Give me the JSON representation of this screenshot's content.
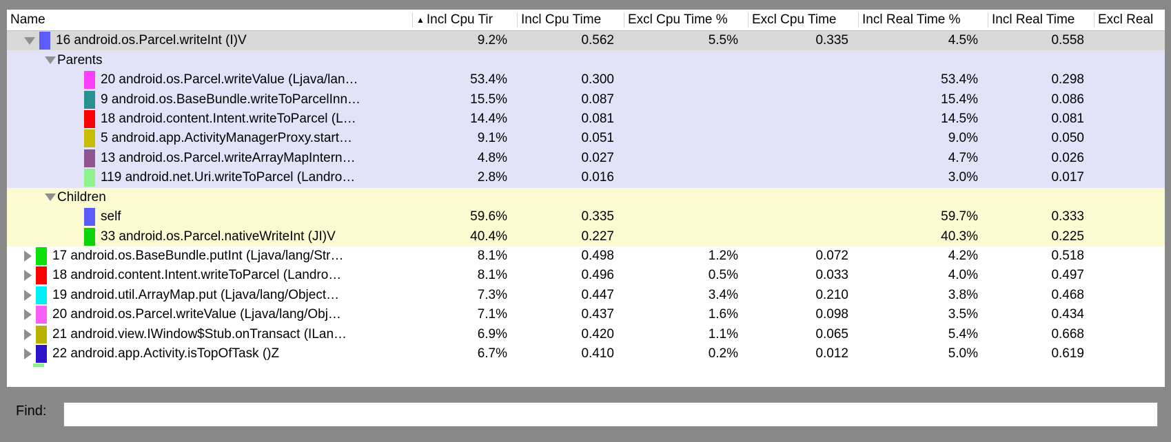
{
  "icons": {
    "sort_ascending": "▲"
  },
  "colors": {
    "window_background": "#898989",
    "selected_row": "#d8d8d8",
    "parents_section": "#e2e2f8",
    "children_section": "#fbfad1"
  },
  "table": {
    "columns": [
      {
        "key": "name",
        "label": "Name",
        "sorted": false
      },
      {
        "key": "incl_cpu_pct",
        "label": "Incl Cpu Tir",
        "sorted": true
      },
      {
        "key": "incl_cpu_time",
        "label": "Incl Cpu Time",
        "sorted": false
      },
      {
        "key": "excl_cpu_pct",
        "label": "Excl Cpu Time %",
        "sorted": false
      },
      {
        "key": "excl_cpu_time",
        "label": "Excl Cpu Time",
        "sorted": false
      },
      {
        "key": "incl_real_pct",
        "label": "Incl Real Time %",
        "sorted": false
      },
      {
        "key": "incl_real_time",
        "label": "Incl Real Time",
        "sorted": false
      },
      {
        "key": "excl_real",
        "label": "Excl Real",
        "sorted": false
      }
    ],
    "rows": [
      {
        "type": "top",
        "bg": "selected",
        "disclosure": "down",
        "swatch": "#5c5cfb",
        "name": "16 android.os.Parcel.writeInt (I)V",
        "values": [
          "9.2%",
          "0.562",
          "5.5%",
          "0.335",
          "4.5%",
          "0.558",
          ""
        ]
      },
      {
        "type": "section",
        "bg": "parents",
        "disclosure": "down",
        "swatch": null,
        "name": "Parents",
        "values": [
          "",
          "",
          "",
          "",
          "",
          "",
          ""
        ]
      },
      {
        "type": "sub",
        "bg": "parents",
        "disclosure": null,
        "swatch": "#fb3efb",
        "name": "20 android.os.Parcel.writeValue (Ljava/lan…",
        "values": [
          "53.4%",
          "0.300",
          "",
          "",
          "53.4%",
          "0.298",
          ""
        ]
      },
      {
        "type": "sub",
        "bg": "parents",
        "disclosure": null,
        "swatch": "#2b9090",
        "name": "9 android.os.BaseBundle.writeToParcelInn…",
        "values": [
          "15.5%",
          "0.087",
          "",
          "",
          "15.4%",
          "0.086",
          ""
        ]
      },
      {
        "type": "sub",
        "bg": "parents",
        "disclosure": null,
        "swatch": "#fd0000",
        "name": "18 android.content.Intent.writeToParcel (L…",
        "values": [
          "14.4%",
          "0.081",
          "",
          "",
          "14.5%",
          "0.081",
          ""
        ]
      },
      {
        "type": "sub",
        "bg": "parents",
        "disclosure": null,
        "swatch": "#c6bd04",
        "name": "5 android.app.ActivityManagerProxy.start…",
        "values": [
          "9.1%",
          "0.051",
          "",
          "",
          "9.0%",
          "0.050",
          ""
        ]
      },
      {
        "type": "sub",
        "bg": "parents",
        "disclosure": null,
        "swatch": "#8e5690",
        "name": "13 android.os.Parcel.writeArrayMapIntern…",
        "values": [
          "4.8%",
          "0.027",
          "",
          "",
          "4.7%",
          "0.026",
          ""
        ]
      },
      {
        "type": "sub",
        "bg": "parents",
        "disclosure": null,
        "swatch": "#8ef28e",
        "name": "119 android.net.Uri.writeToParcel (Landro…",
        "values": [
          "2.8%",
          "0.016",
          "",
          "",
          "3.0%",
          "0.017",
          ""
        ]
      },
      {
        "type": "section",
        "bg": "children",
        "disclosure": "down",
        "swatch": null,
        "name": "Children",
        "values": [
          "",
          "",
          "",
          "",
          "",
          "",
          ""
        ]
      },
      {
        "type": "sub",
        "bg": "children",
        "disclosure": null,
        "swatch": "#5c5cfb",
        "name": "self",
        "values": [
          "59.6%",
          "0.335",
          "",
          "",
          "59.7%",
          "0.333",
          ""
        ]
      },
      {
        "type": "sub",
        "bg": "children",
        "disclosure": null,
        "swatch": "#0bd40b",
        "name": "33 android.os.Parcel.nativeWriteInt (JI)V",
        "values": [
          "40.4%",
          "0.227",
          "",
          "",
          "40.3%",
          "0.225",
          ""
        ]
      },
      {
        "type": "top",
        "bg": "plain",
        "disclosure": "right",
        "swatch": "#0ae00a",
        "name": "17 android.os.BaseBundle.putInt (Ljava/lang/Str…",
        "values": [
          "8.1%",
          "0.498",
          "1.2%",
          "0.072",
          "4.2%",
          "0.518",
          ""
        ]
      },
      {
        "type": "top",
        "bg": "plain",
        "disclosure": "right",
        "swatch": "#fe0000",
        "name": "18 android.content.Intent.writeToParcel (Landro…",
        "values": [
          "8.1%",
          "0.496",
          "0.5%",
          "0.033",
          "4.0%",
          "0.497",
          ""
        ]
      },
      {
        "type": "top",
        "bg": "plain",
        "disclosure": "right",
        "swatch": "#00f0fa",
        "name": "19 android.util.ArrayMap.put (Ljava/lang/Object…",
        "values": [
          "7.3%",
          "0.447",
          "3.4%",
          "0.210",
          "3.8%",
          "0.468",
          ""
        ]
      },
      {
        "type": "top",
        "bg": "plain",
        "disclosure": "right",
        "swatch": "#f85ef8",
        "name": "20 android.os.Parcel.writeValue (Ljava/lang/Obj…",
        "values": [
          "7.1%",
          "0.437",
          "1.6%",
          "0.098",
          "3.5%",
          "0.434",
          ""
        ]
      },
      {
        "type": "top",
        "bg": "plain",
        "disclosure": "right",
        "swatch": "#b8b303",
        "name": "21 android.view.IWindow$Stub.onTransact (ILan…",
        "values": [
          "6.9%",
          "0.420",
          "1.1%",
          "0.065",
          "5.4%",
          "0.668",
          ""
        ]
      },
      {
        "type": "top",
        "bg": "plain",
        "disclosure": "right",
        "swatch": "#2e14c8",
        "name": "22 android.app.Activity.isTopOfTask ()Z",
        "values": [
          "6.7%",
          "0.410",
          "0.2%",
          "0.012",
          "5.0%",
          "0.619",
          ""
        ]
      }
    ],
    "partial_row_swatch": "#8ef28e"
  },
  "find": {
    "label": "Find:",
    "value": "",
    "placeholder": ""
  }
}
